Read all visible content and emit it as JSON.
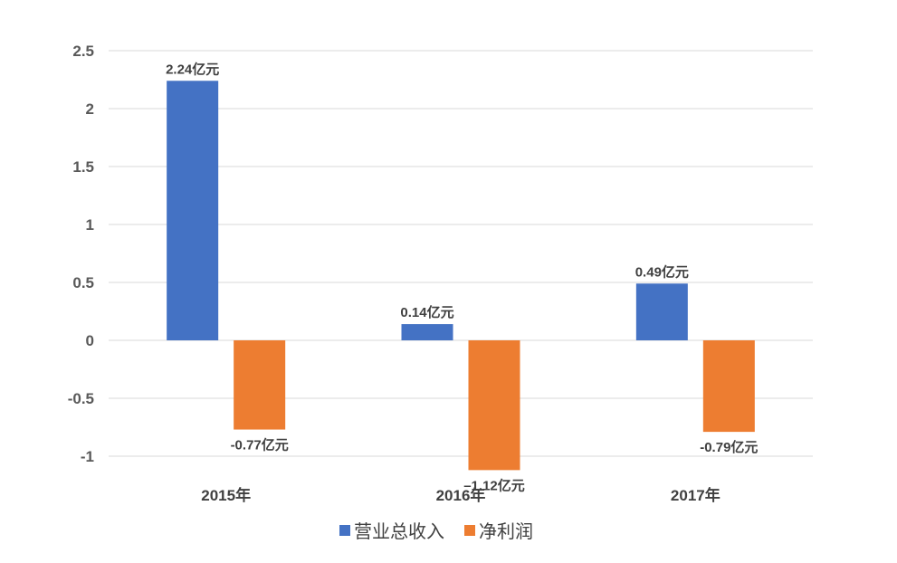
{
  "chart_data": {
    "type": "bar",
    "title": "",
    "xlabel": "",
    "ylabel": "",
    "categories": [
      "2015年",
      "2016年",
      "2017年"
    ],
    "series": [
      {
        "name": "营业总收入",
        "color": "#4472C4",
        "values": [
          2.24,
          0.14,
          0.49
        ],
        "labels": [
          "2.24亿元",
          "0.14亿元",
          "0.49亿元"
        ]
      },
      {
        "name": "净利润",
        "color": "#ED7D31",
        "values": [
          -0.77,
          -1.12,
          -0.79
        ],
        "labels": [
          "-0.77亿元",
          "–1.12亿元",
          "-0.79亿元"
        ]
      }
    ],
    "ylim": [
      -1,
      2.5
    ],
    "yticks": [
      2.5,
      2,
      1.5,
      1,
      0.5,
      0,
      -0.5,
      -1
    ],
    "ytick_labels": [
      "2.5",
      "2",
      "1.5",
      "1",
      "0.5",
      "0",
      "-0.5",
      "-1"
    ],
    "grid": true,
    "legend_position": "bottom"
  }
}
